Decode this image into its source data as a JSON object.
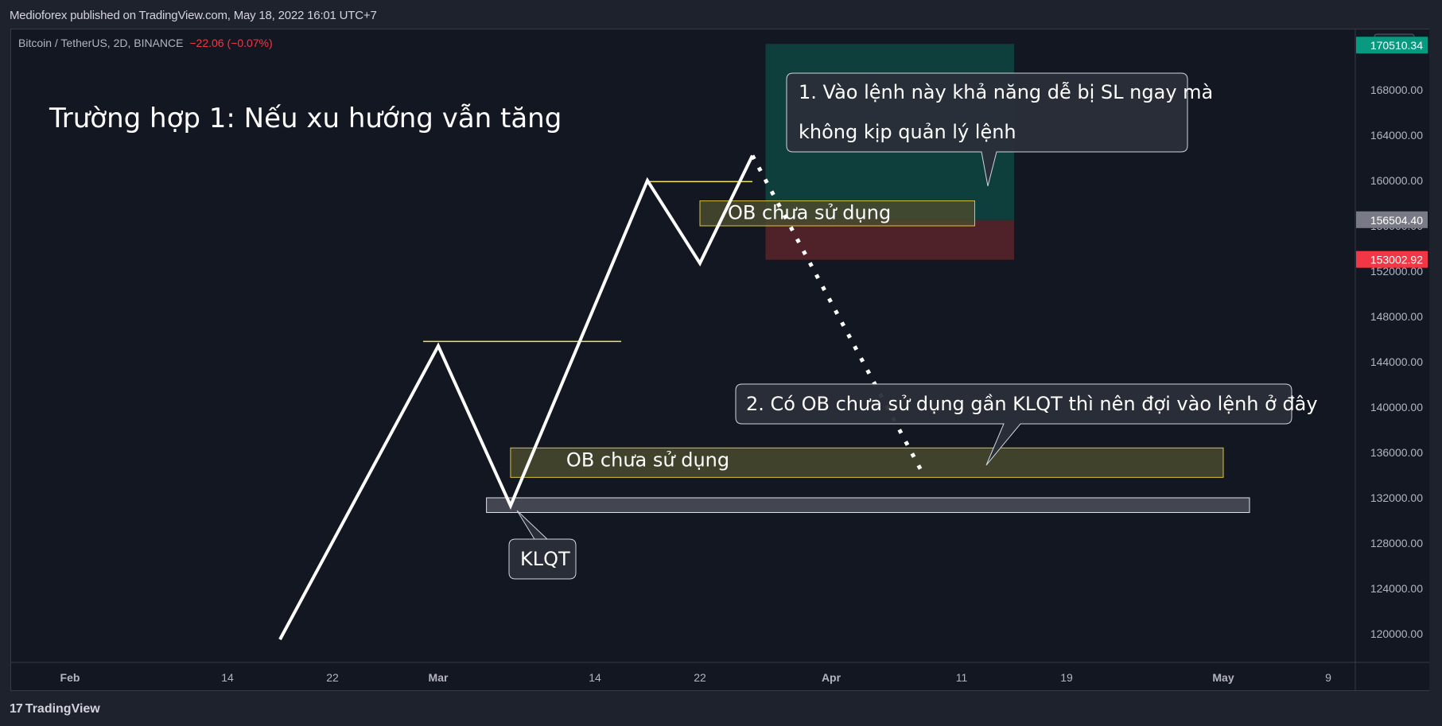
{
  "header": {
    "published_by": "Medioforex published on TradingView.com, May 18, 2022 16:01 UTC+7"
  },
  "symbol_line": {
    "name": "Bitcoin / TetherUS, 2D, BINANCE",
    "change": "−22.06 (−0.07%)"
  },
  "footer": {
    "brand": "TradingView"
  },
  "colors": {
    "background": "#131722",
    "chrome": "#1e222d",
    "line": "#ffffff",
    "level": "#f2e55c",
    "ob_fill": "#4a4a2e",
    "ob_border": "#d9c43a",
    "target_zone": "#0e4d47",
    "stop_zone": "#5a2329",
    "price_tag_green": "#089981",
    "price_tag_gray": "#787b86",
    "price_tag_red": "#f23645"
  },
  "chart_data": {
    "type": "line",
    "title": "Trường hợp 1: Nếu xu hướng vẫn tăng",
    "currency": "USDT",
    "ylim": [
      118000,
      176000
    ],
    "y_ticks": [
      120000,
      124000,
      128000,
      132000,
      136000,
      140000,
      144000,
      148000,
      152000,
      156000,
      160000,
      164000,
      168000,
      172000
    ],
    "y_tick_labels": [
      "120000.00",
      "124000.00",
      "128000.00",
      "132000.00",
      "136000.00",
      "140000.00",
      "144000.00",
      "148000.00",
      "152000.00",
      "156000.00",
      "160000.00",
      "164000.00",
      "168000.00",
      "172000.00"
    ],
    "x_tick_labels": [
      {
        "label": "Feb",
        "date": "2022-02-01",
        "bold": true
      },
      {
        "label": "14",
        "date": "2022-02-14",
        "bold": false
      },
      {
        "label": "22",
        "date": "2022-02-22",
        "bold": false
      },
      {
        "label": "Mar",
        "date": "2022-03-01",
        "bold": true
      },
      {
        "label": "14",
        "date": "2022-03-14",
        "bold": false
      },
      {
        "label": "22",
        "date": "2022-03-22",
        "bold": false
      },
      {
        "label": "Apr",
        "date": "2022-04-01",
        "bold": true
      },
      {
        "label": "11",
        "date": "2022-04-11",
        "bold": false
      },
      {
        "label": "19",
        "date": "2022-04-19",
        "bold": false
      },
      {
        "label": "May",
        "date": "2022-05-01",
        "bold": true
      },
      {
        "label": "9",
        "date": "2022-05-09",
        "bold": false
      }
    ],
    "price_path": [
      {
        "date": "2022-02-18",
        "price": 119500
      },
      {
        "date": "2022-03-01",
        "price": 145400
      },
      {
        "date": "2022-03-07",
        "price": 131300
      },
      {
        "date": "2022-03-18",
        "price": 160000
      },
      {
        "date": "2022-03-22",
        "price": 152700
      },
      {
        "date": "2022-03-26",
        "price": 162200
      }
    ],
    "projected_path": [
      {
        "date": "2022-03-26",
        "price": 162200
      },
      {
        "date": "2022-04-08",
        "price": 134200
      }
    ],
    "levels": [
      {
        "price": 145800,
        "from": "2022-02-28",
        "to": "2022-03-16"
      },
      {
        "price": 159900,
        "from": "2022-03-18",
        "to": "2022-03-26"
      }
    ],
    "order_blocks": [
      {
        "label": "OB chưa sử dụng",
        "from": "2022-03-07",
        "to": "2022-05-01",
        "top": 136400,
        "bottom": 133800
      },
      {
        "label": "OB chưa sử dụng",
        "from": "2022-03-22",
        "to": "2022-04-12",
        "top": 158200,
        "bottom": 156000
      }
    ],
    "klqt_zone": {
      "from": "2022-03-05",
      "to": "2022-05-03",
      "top": 132000,
      "bottom": 130700
    },
    "position": {
      "from": "2022-03-27",
      "to": "2022-04-15",
      "target": 170510.34,
      "entry": 156504.4,
      "stop": 153002.92
    },
    "price_tags": [
      {
        "price": 170510.34,
        "label": "170510.34",
        "color": "green"
      },
      {
        "price": 156504.4,
        "label": "156504.40",
        "color": "gray"
      },
      {
        "price": 153002.92,
        "label": "153002.92",
        "color": "red"
      }
    ],
    "callouts": [
      {
        "id": "callout-1",
        "lines": [
          "1. Vào lệnh này khả năng dễ bị SL ngay mà",
          "không kịp quản lý lệnh"
        ]
      },
      {
        "id": "callout-2",
        "lines": [
          "2. Có OB chưa sử dụng gần KLQT thì nên đợi vào lệnh ở đây"
        ]
      },
      {
        "id": "callout-klqt",
        "lines": [
          "KLQT"
        ]
      }
    ]
  }
}
